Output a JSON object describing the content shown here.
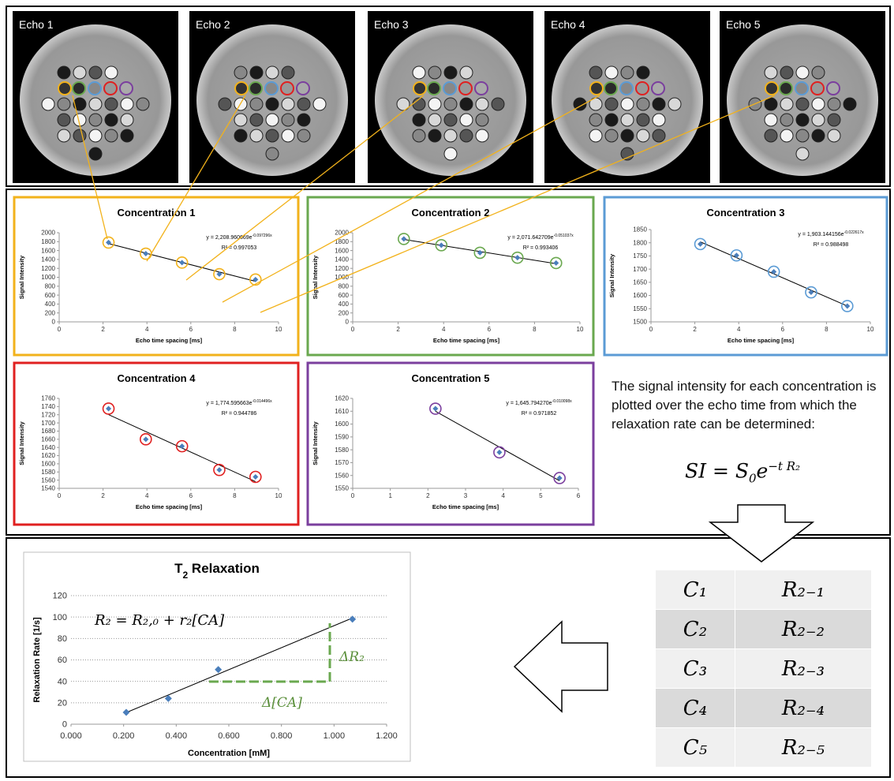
{
  "echo_panels": [
    "Echo 1",
    "Echo 2",
    "Echo 3",
    "Echo 4",
    "Echo 5"
  ],
  "chart_data": [
    {
      "type": "scatter",
      "title": "Concentration 1",
      "xlabel": "Echo time spacing [ms]",
      "ylabel": "Signal Intensity",
      "equation": "y = 2,208.960669e",
      "equation_exponent": "-0.097296x",
      "r_squared": "R² = 0.997053",
      "x": [
        2.25,
        3.95,
        5.6,
        7.3,
        8.95
      ],
      "values": [
        1780,
        1530,
        1330,
        1070,
        950
      ],
      "xlim": [
        0,
        10
      ],
      "xticks": [
        0,
        2,
        4,
        6,
        8,
        10
      ],
      "ylim": [
        0,
        2000
      ],
      "yticks": [
        0,
        200,
        400,
        600,
        800,
        1000,
        1200,
        1400,
        1600,
        1800,
        2000
      ],
      "color": "#4a7ebb",
      "ring_color": "#f2b21b",
      "frame_color": "#f2b21b",
      "trendline": true,
      "grid": false
    },
    {
      "type": "scatter",
      "title": "Concentration 2",
      "xlabel": "Echo time spacing [ms]",
      "ylabel": "Signal Intensity",
      "equation": "y = 2,071.642709e",
      "equation_exponent": "-0.051037x",
      "r_squared": "R² = 0.993406",
      "x": [
        2.25,
        3.9,
        5.6,
        7.25,
        8.95
      ],
      "values": [
        1860,
        1720,
        1550,
        1440,
        1320
      ],
      "xlim": [
        0,
        10
      ],
      "xticks": [
        0,
        2,
        4,
        6,
        8,
        10
      ],
      "ylim": [
        0,
        2000
      ],
      "yticks": [
        0,
        200,
        400,
        600,
        800,
        1000,
        1200,
        1400,
        1600,
        1800,
        2000
      ],
      "color": "#4a7ebb",
      "ring_color": "#6aa84f",
      "frame_color": "#6aa84f",
      "trendline": true,
      "grid": false
    },
    {
      "type": "scatter",
      "title": "Concentration 3",
      "xlabel": "Echo time spacing [ms]",
      "ylabel": "Signal Intensity",
      "equation": "y = 1,903.144156e",
      "equation_exponent": "-0.022617x",
      "r_squared": "R² = 0.988498",
      "x": [
        2.25,
        3.9,
        5.6,
        7.3,
        8.95
      ],
      "values": [
        1795,
        1752,
        1690,
        1612,
        1560
      ],
      "xlim": [
        0,
        10
      ],
      "xticks": [
        0,
        2,
        4,
        6,
        8,
        10
      ],
      "ylim": [
        1500,
        1850
      ],
      "yticks": [
        1500,
        1550,
        1600,
        1650,
        1700,
        1750,
        1800,
        1850
      ],
      "color": "#4a7ebb",
      "ring_color": "#5b9bd5",
      "frame_color": "#5b9bd5",
      "trendline": true,
      "grid": false
    },
    {
      "type": "scatter",
      "title": "Concentration 4",
      "xlabel": "Echo time spacing [ms]",
      "ylabel": "Signal Intensity",
      "equation": "y = 1,774.595663e",
      "equation_exponent": "-0.014496x",
      "r_squared": "R² = 0.944786",
      "x": [
        2.25,
        3.95,
        5.6,
        7.3,
        8.95
      ],
      "values": [
        1735,
        1660,
        1643,
        1585,
        1568
      ],
      "xlim": [
        0,
        10
      ],
      "xticks": [
        0,
        2,
        4,
        6,
        8,
        10
      ],
      "ylim": [
        1540,
        1760
      ],
      "yticks": [
        1540,
        1560,
        1580,
        1600,
        1620,
        1640,
        1660,
        1680,
        1700,
        1720,
        1740,
        1760
      ],
      "color": "#4a7ebb",
      "ring_color": "#e02020",
      "frame_color": "#e02020",
      "trendline": true,
      "grid": false
    },
    {
      "type": "scatter",
      "title": "Concentration 5",
      "xlabel": "Echo time spacing [ms]",
      "ylabel": "Signal Intensity",
      "equation": "y = 1,645.794270e",
      "equation_exponent": "-0.010098x",
      "r_squared": "R² = 0.971852",
      "x": [
        2.2,
        3.9,
        5.5
      ],
      "values": [
        1612,
        1578,
        1558
      ],
      "xlim": [
        0,
        6
      ],
      "xticks": [
        0,
        1,
        2,
        3,
        4,
        5,
        6
      ],
      "ylim": [
        1550,
        1620
      ],
      "yticks": [
        1550,
        1560,
        1570,
        1580,
        1590,
        1600,
        1610,
        1620
      ],
      "color": "#4a7ebb",
      "ring_color": "#7b3f9e",
      "frame_color": "#7b3f9e",
      "trendline": true,
      "grid": false
    },
    {
      "type": "scatter",
      "title": "T",
      "title_subscript": "2",
      "title_suffix": " Relaxation",
      "xlabel": "Concentration [mM]",
      "ylabel": "Relaxation Rate [1/s]",
      "x": [
        0.21,
        0.37,
        0.56,
        1.07
      ],
      "values": [
        11,
        24,
        51,
        98
      ],
      "xlim": [
        0,
        1.2
      ],
      "xticks": [
        {
          "value": 0,
          "label": "0.000"
        },
        {
          "value": 0.2,
          "label": "0.200"
        },
        {
          "value": 0.4,
          "label": "0.400"
        },
        {
          "value": 0.6,
          "label": "0.600"
        },
        {
          "value": 0.8,
          "label": "0.800"
        },
        {
          "value": 1,
          "label": "1.000"
        },
        {
          "value": 1.2,
          "label": "1.200"
        }
      ],
      "ylim": [
        0,
        120
      ],
      "yticks": [
        0,
        20,
        40,
        60,
        80,
        100,
        120
      ],
      "color": "#4a7ebb",
      "frame_color": "#bfbfbf",
      "trendline": true,
      "grid": true,
      "annotations": {
        "model": "R₂ = R₂,₀ + r₂[CA]",
        "delta_r": "ΔR₂",
        "delta_ca": "Δ[CA]"
      }
    }
  ],
  "description": "The signal intensity for each concentration is plotted over the echo time from which the relaxation rate can be determined:",
  "formula": {
    "lhs": "SI = S",
    "sub": "0",
    "base": "e",
    "exponent": "−t R₂"
  },
  "table": {
    "rows": [
      [
        "C₁",
        "R₂₋₁"
      ],
      [
        "C₂",
        "R₂₋₂"
      ],
      [
        "C₃",
        "R₂₋₃"
      ],
      [
        "C₄",
        "R₂₋₄"
      ],
      [
        "C₅",
        "R₂₋₅"
      ]
    ]
  }
}
